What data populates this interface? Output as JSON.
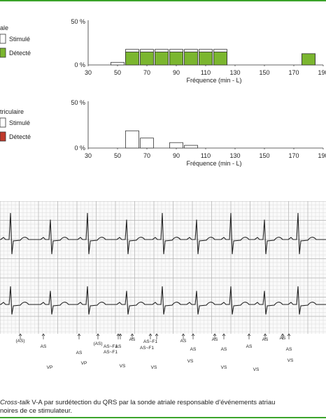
{
  "charts": [
    {
      "type": "bar",
      "legend_title": "ale",
      "legend": [
        {
          "label": "Stimulé",
          "color": "#ffffff"
        },
        {
          "label": "Détecté",
          "color": "#7bb62f"
        }
      ],
      "yticks": [
        "50 %",
        "0 %"
      ],
      "xticks": [
        "30",
        "50",
        "70",
        "90",
        "110",
        "130",
        "150",
        "170",
        "190"
      ],
      "xlabel": "Fréquence (min - L)"
    },
    {
      "type": "bar",
      "legend_title": "triculaire",
      "legend": [
        {
          "label": "Stimulé",
          "color": "#ffffff"
        },
        {
          "label": "Détecté",
          "color": "#c0392b"
        }
      ],
      "yticks": [
        "50 %",
        "0 %"
      ],
      "xticks": [
        "30",
        "50",
        "70",
        "90",
        "110",
        "130",
        "150",
        "170",
        "190"
      ],
      "xlabel": "Fréquence (min - L)"
    }
  ],
  "chart_data": [
    {
      "type": "bar",
      "stacked": true,
      "x_bins": [
        50,
        60,
        70,
        80,
        90,
        100,
        110,
        120,
        180
      ],
      "series": [
        {
          "name": "Stimulé",
          "values": [
            3,
            18,
            18,
            18,
            18,
            18,
            18,
            18,
            0
          ]
        },
        {
          "name": "Détecté",
          "values": [
            0,
            15,
            15,
            15,
            15,
            15,
            15,
            15,
            13
          ]
        }
      ],
      "xlim": [
        30,
        190
      ],
      "ylim": [
        0,
        50
      ]
    },
    {
      "type": "bar",
      "stacked": true,
      "x_bins": [
        60,
        70,
        90,
        100
      ],
      "series": [
        {
          "name": "Stimulé",
          "values": [
            19,
            11,
            6,
            3
          ]
        },
        {
          "name": "Détecté",
          "values": [
            0,
            0,
            0,
            0
          ]
        }
      ],
      "xlim": [
        30,
        190
      ],
      "ylim": [
        0,
        50
      ]
    }
  ],
  "ecg": {
    "row1": [
      {
        "text": "(AS)"
      },
      {
        "text": "AS"
      },
      {
        "text": "AS"
      },
      {
        "text": "VP"
      },
      {
        "text": "(AS)"
      },
      {
        "text": "AS"
      },
      {
        "text": "VP"
      },
      {
        "text": "AS"
      },
      {
        "text": "AS~F1"
      },
      {
        "text": "AS~F1"
      },
      {
        "text": "VS"
      },
      {
        "text": "AS~F1"
      },
      {
        "text": "AS~F1"
      },
      {
        "text": "VS"
      },
      {
        "text": "AS"
      },
      {
        "text": "AS"
      },
      {
        "text": "VS"
      },
      {
        "text": "AS"
      },
      {
        "text": "AS"
      },
      {
        "text": "VS"
      },
      {
        "text": "AS"
      },
      {
        "text": "AS"
      },
      {
        "text": "VS"
      },
      {
        "text": "AS"
      },
      {
        "text": "AS"
      },
      {
        "text": "VS"
      }
    ]
  },
  "caption": {
    "italic": "Cross-talk",
    "line1": " V-A par surdétection du QRS par la sonde atriale responsable d’événements atriau",
    "line2": "noires de ce stimulateur."
  }
}
